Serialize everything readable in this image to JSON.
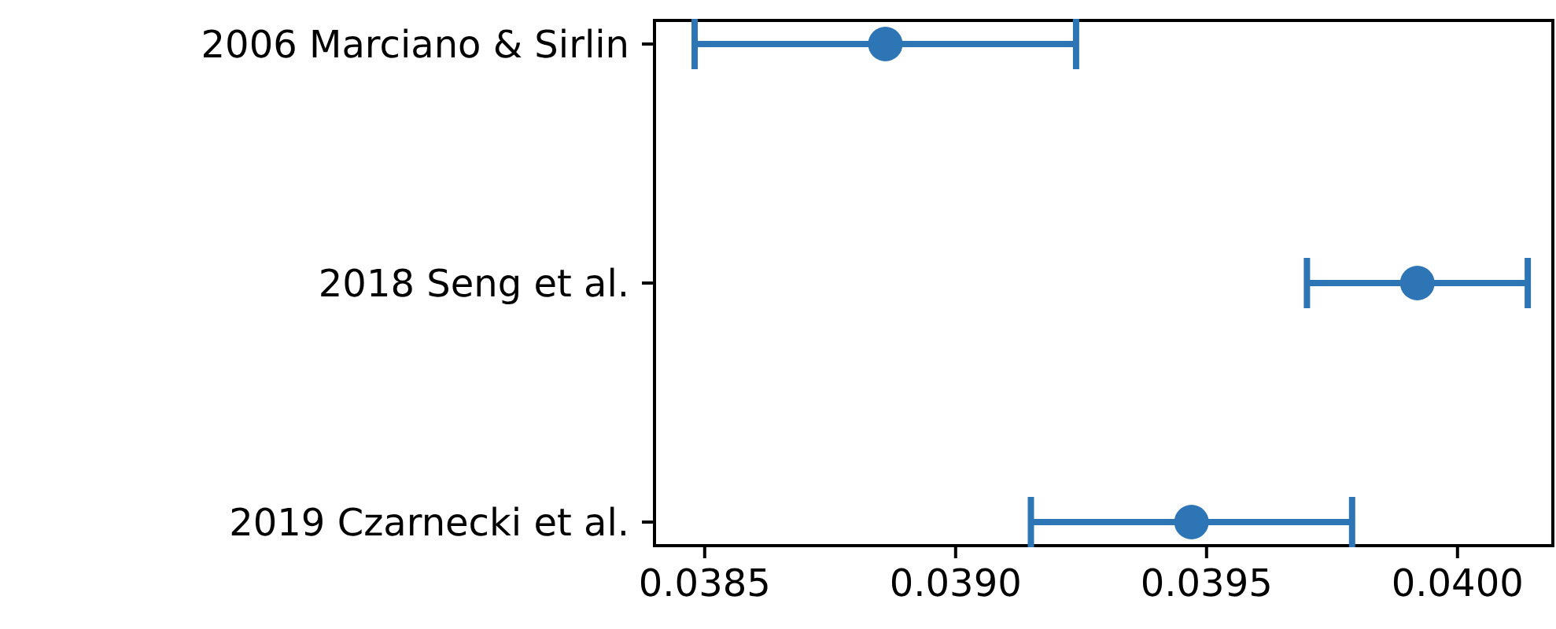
{
  "chart_data": {
    "type": "scatter",
    "orientation": "horizontal",
    "categories": [
      "2006 Marciano & Sirlin",
      "2018 Seng et al.",
      "2019 Czarnecki et al."
    ],
    "color": "#2e75b6",
    "values": [
      0.03886,
      0.03992,
      0.03947
    ],
    "errors": [
      0.00038,
      0.00022,
      0.00032
    ],
    "xlim": [
      0.0384,
      0.04019
    ],
    "xticks": [
      {
        "value": 0.0385,
        "label": "0.0385"
      },
      {
        "value": 0.039,
        "label": "0.0390"
      },
      {
        "value": 0.0395,
        "label": "0.0395"
      },
      {
        "value": 0.04,
        "label": "0.0400"
      }
    ],
    "marker": "circle",
    "grid": false
  }
}
